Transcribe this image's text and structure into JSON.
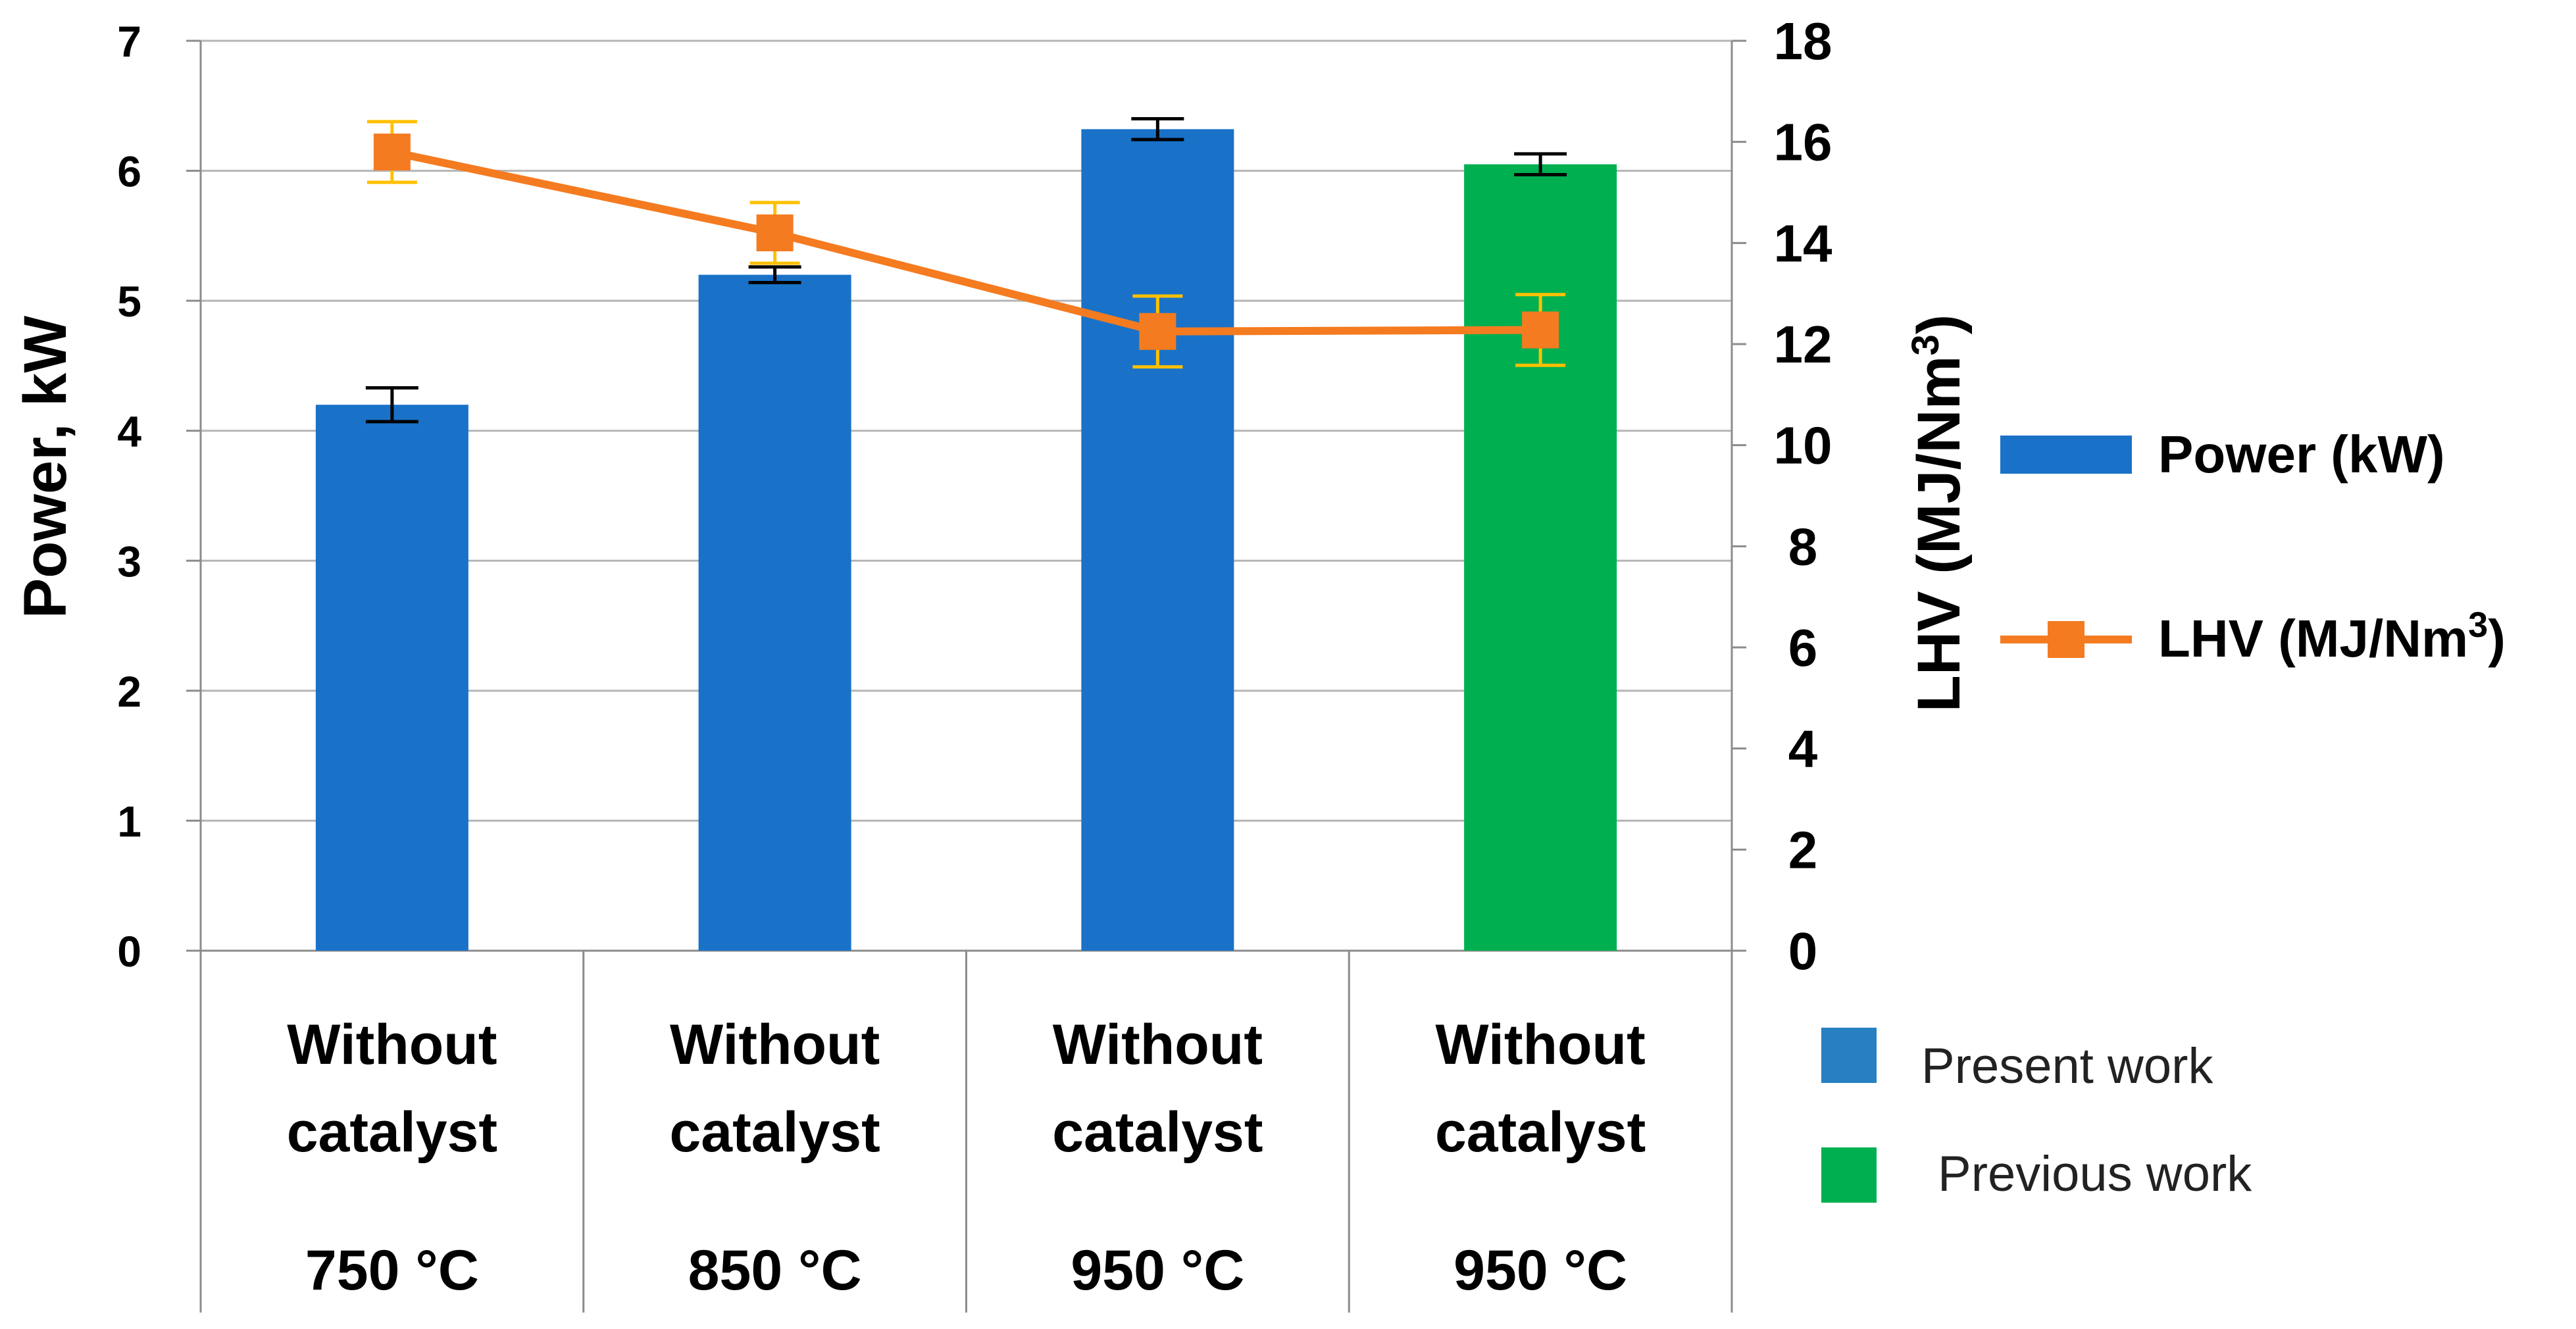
{
  "chart_data": {
    "type": "bar",
    "categories": [
      {
        "label": "Without catalyst",
        "temp": "750 °C"
      },
      {
        "label": "Without catalyst",
        "temp": "850 °C"
      },
      {
        "label": "Without catalyst",
        "temp": "950 °C"
      },
      {
        "label": "Without catalyst",
        "temp": "950 °C"
      }
    ],
    "bar_series": {
      "name": "Power (kW)",
      "values": [
        4.2,
        5.2,
        6.32,
        6.05
      ],
      "errors": [
        0.13,
        0.06,
        0.08,
        0.08
      ],
      "colors": [
        "#1a72c8",
        "#1a72c8",
        "#1a72c8",
        "#00b050"
      ]
    },
    "line_series": {
      "name": "LHV (MJ/Nm",
      "name_sup": "3",
      "name_end": ")",
      "values": [
        15.8,
        14.2,
        12.25,
        12.28
      ],
      "errors": [
        0.6,
        0.6,
        0.7,
        0.7
      ],
      "color": "#f47b20",
      "error_color": "#ffc000"
    },
    "y_left": {
      "title": "Power, kW",
      "min": 0,
      "max": 7,
      "ticks": [
        "0",
        "1",
        "2",
        "3",
        "4",
        "5",
        "6",
        "7"
      ]
    },
    "y_right": {
      "title": "LHV (MJ/Nm",
      "title_sup": "3",
      "title_end": ")",
      "min": 0,
      "max": 18,
      "ticks": [
        "0",
        "2",
        "4",
        "6",
        "8",
        "10",
        "12",
        "14",
        "16",
        "18"
      ]
    },
    "grid": true,
    "legend": {
      "power_label": "Power (kW)",
      "lhv_label": "LHV (MJ/Nm",
      "lhv_sup": "3",
      "lhv_end": ")",
      "present_label": "Present work",
      "present_color": "#2680c2",
      "previous_label": "Previous work",
      "previous_color": "#00b050"
    }
  }
}
